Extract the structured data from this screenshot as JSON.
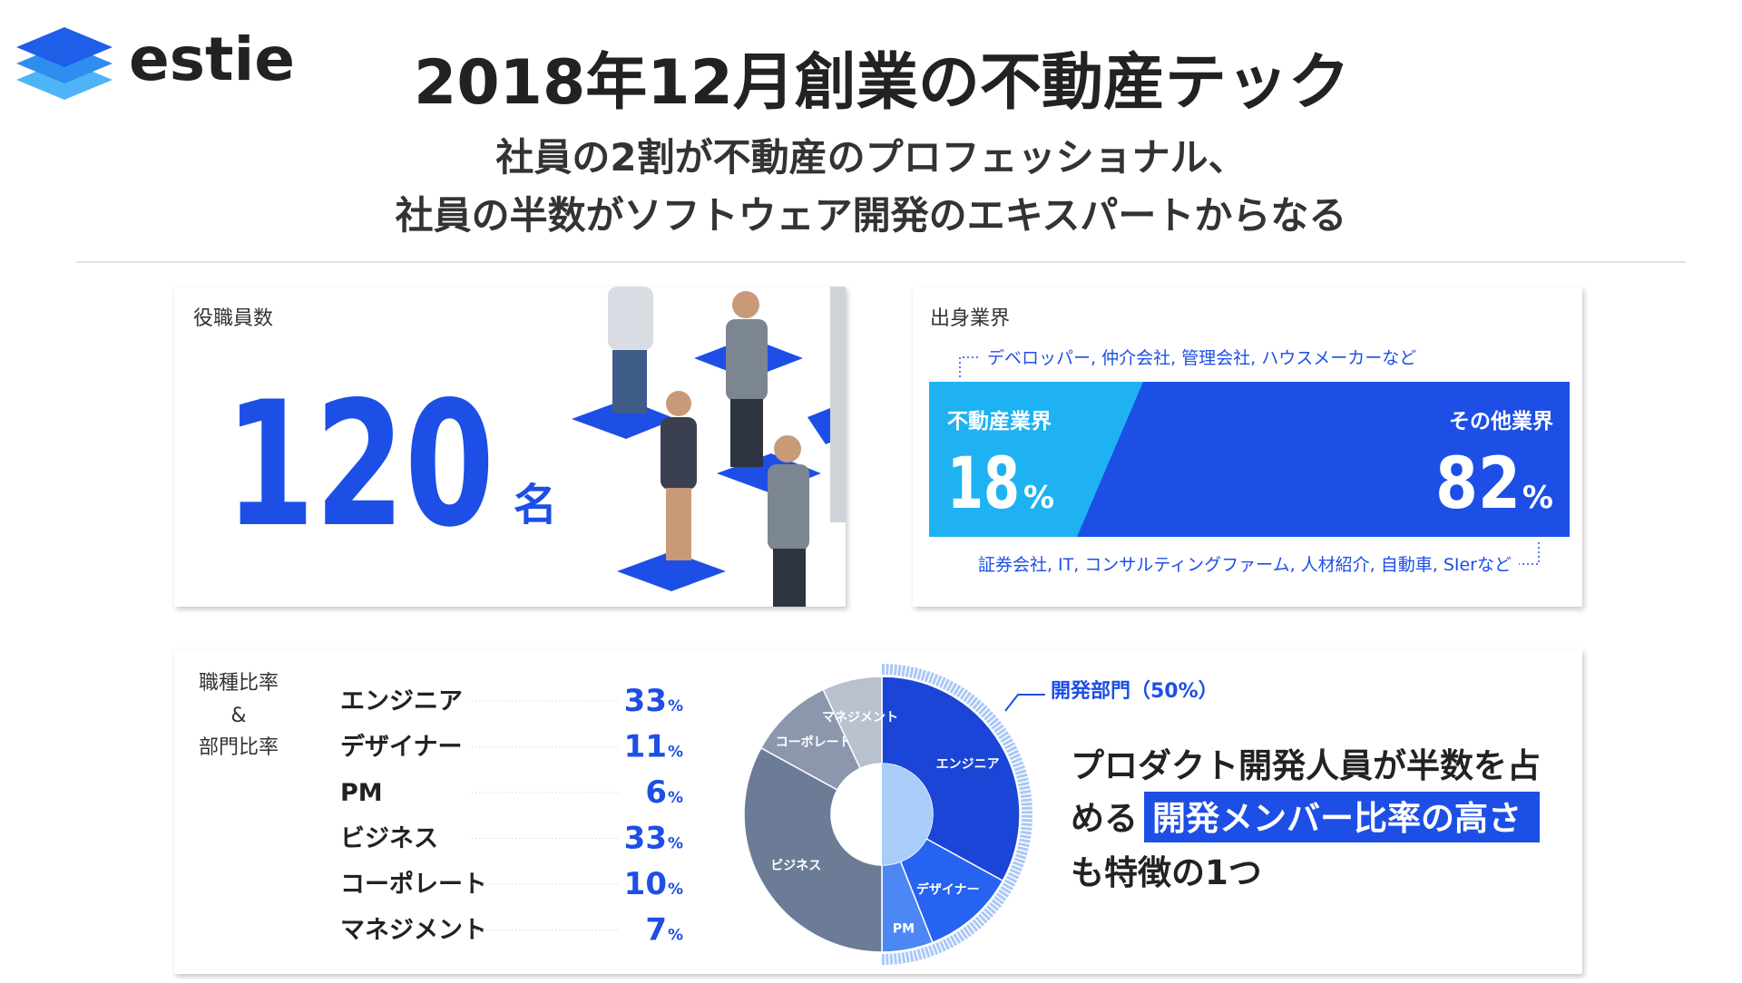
{
  "header": {
    "logo": "estie",
    "title": "2018年12月創業の不動産テック",
    "subtitle": [
      "社員の2割が不動産のプロフェッショナル、",
      "社員の半数がソフトウェア開発のエキスパートからなる"
    ]
  },
  "headcount": {
    "label": "役職員数",
    "value": 120,
    "unit": "名"
  },
  "industry": {
    "label": "出身業界",
    "unit": "%",
    "real_estate": {
      "name": "不動産業界",
      "value": 18,
      "note": "デベロッパー, 仲介会社, 管理会社, ハウスメーカーなど"
    },
    "other": {
      "name": "その他業界",
      "value": 82,
      "note": "証券会社, IT, コンサルティングファーム, 人材紹介, 自動車, SIerなど"
    }
  },
  "roles": {
    "label": [
      "職種比率",
      "&",
      "部門比率"
    ],
    "dev_note": "開発部門（50%）",
    "message": {
      "line1": "プロダクト開発人員が半数を占",
      "line2": "める",
      "highlight": "開発メンバー比率の高さ",
      "line3": "も特徴の1つ"
    }
  },
  "chart_data": {
    "type": "pie",
    "unit": "%",
    "categories": [
      "エンジニア",
      "デザイナー",
      "PM",
      "ビジネス",
      "コーポレート",
      "マネジメント"
    ],
    "values": [
      33,
      11,
      6,
      33,
      10,
      7
    ],
    "colors": [
      "#1b45d6",
      "#2563f0",
      "#4c87f3",
      "#6c7c97",
      "#8c97ad",
      "#b9c0ce"
    ]
  }
}
